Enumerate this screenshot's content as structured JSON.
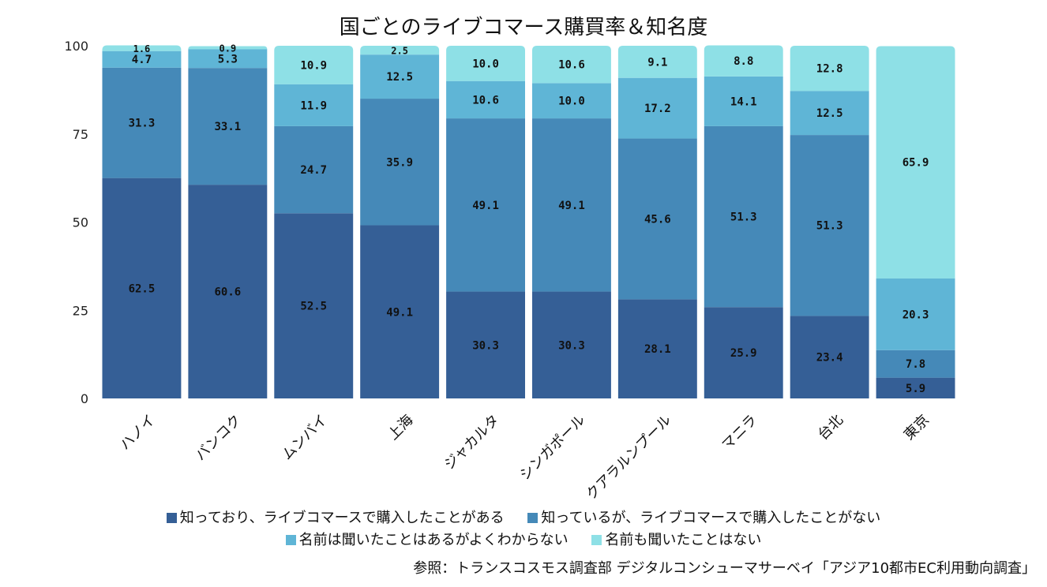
{
  "chart_data": {
    "type": "bar",
    "stacked": true,
    "title": "国ごとのライブコマース購買率＆知名度",
    "categories": [
      "ハノイ",
      "バンコク",
      "ムンバイ",
      "上海",
      "ジャカルタ",
      "シンガポール",
      "クアラルンプール",
      "マニラ",
      "台北",
      "東京"
    ],
    "ylim": [
      0,
      100
    ],
    "yticks": [
      0,
      25,
      50,
      75,
      100
    ],
    "series": [
      {
        "name": "知っており、ライブコマースで購入したことがある",
        "color": "#355f96",
        "values": [
          62.5,
          60.6,
          52.5,
          49.1,
          30.3,
          30.3,
          28.1,
          25.9,
          23.4,
          5.9
        ]
      },
      {
        "name": "知っているが、ライブコマースで購入したことがない",
        "color": "#4589b8",
        "values": [
          31.3,
          33.1,
          24.7,
          35.9,
          49.1,
          49.1,
          45.6,
          51.3,
          51.3,
          7.8
        ]
      },
      {
        "name": "名前は聞いたことはあるがよくわからない",
        "color": "#5fb5d6",
        "values": [
          4.7,
          5.3,
          11.9,
          12.5,
          10.6,
          10.0,
          17.2,
          14.1,
          12.5,
          20.3
        ]
      },
      {
        "name": "名前も聞いたことはない",
        "color": "#8ee0e6",
        "values": [
          1.6,
          0.9,
          10.9,
          2.5,
          10.0,
          10.6,
          9.1,
          8.8,
          12.8,
          65.9
        ]
      }
    ],
    "source": "参照：トランスコスモス調査部 デジタルコンシューマサーベイ「アジア10都市EC利用動向調査」"
  }
}
